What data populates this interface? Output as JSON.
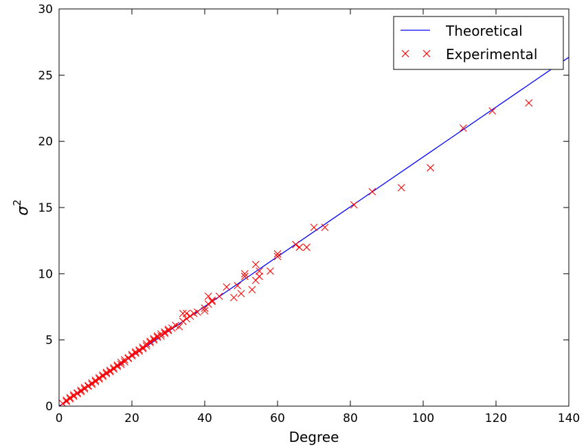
{
  "chart_data": {
    "type": "scatter",
    "title": "",
    "xlabel": "Degree",
    "ylabel_base": "σ",
    "ylabel_exp": "2",
    "xlim": [
      0,
      140
    ],
    "ylim": [
      0,
      30
    ],
    "xticks": [
      0,
      20,
      40,
      60,
      80,
      100,
      120,
      140
    ],
    "yticks": [
      0,
      5,
      10,
      15,
      20,
      25,
      30
    ],
    "grid": false,
    "legend": {
      "placement": "top-right",
      "entries": [
        {
          "name": "Theoretical",
          "marker": "line",
          "color": "#0000ff"
        },
        {
          "name": "Experimental",
          "marker": "x",
          "color": "#ff0000"
        }
      ]
    },
    "series": [
      {
        "name": "Theoretical",
        "kind": "line",
        "color": "#0000ff",
        "x": [
          0,
          140
        ],
        "y": [
          0,
          26.35
        ]
      },
      {
        "name": "Experimental",
        "kind": "scatter",
        "marker": "x",
        "color": "#ff0000",
        "x": [
          1,
          2,
          2,
          3,
          3,
          4,
          4,
          5,
          5,
          6,
          6,
          7,
          7,
          8,
          8,
          9,
          9,
          10,
          10,
          11,
          11,
          12,
          12,
          13,
          13,
          14,
          14,
          15,
          15,
          16,
          16,
          17,
          17,
          18,
          18,
          19,
          19,
          20,
          20,
          21,
          21,
          22,
          22,
          23,
          23,
          24,
          24,
          25,
          25,
          26,
          26,
          27,
          27,
          28,
          28,
          29,
          29,
          30,
          30,
          31,
          32,
          33,
          34,
          34,
          35,
          35,
          36,
          37,
          38,
          40,
          40,
          41,
          41,
          42,
          42,
          44,
          46,
          48,
          49,
          50,
          51,
          51,
          53,
          54,
          54,
          55,
          55,
          58,
          60,
          60,
          65,
          66,
          68,
          70,
          73,
          81,
          86,
          94,
          102,
          111,
          119,
          129
        ],
        "y": [
          0.2,
          0.35,
          0.45,
          0.55,
          0.65,
          0.75,
          0.85,
          0.95,
          1.0,
          1.1,
          1.2,
          1.3,
          1.4,
          1.5,
          1.55,
          1.65,
          1.75,
          1.85,
          1.95,
          2.05,
          2.15,
          2.25,
          2.35,
          2.45,
          2.55,
          2.6,
          2.7,
          2.8,
          2.9,
          3.0,
          3.1,
          3.15,
          3.3,
          3.35,
          3.5,
          3.6,
          3.65,
          3.8,
          3.9,
          4.0,
          4.1,
          4.15,
          4.25,
          4.35,
          4.45,
          4.55,
          4.7,
          4.8,
          4.9,
          5.0,
          5.1,
          5.2,
          5.3,
          5.3,
          5.45,
          5.5,
          5.6,
          5.7,
          5.8,
          5.9,
          6.1,
          6.0,
          6.4,
          7.0,
          6.6,
          7.0,
          6.8,
          7.0,
          7.1,
          7.2,
          7.4,
          7.7,
          8.3,
          7.9,
          8.0,
          8.3,
          9.0,
          8.2,
          9.1,
          8.5,
          9.8,
          10.0,
          8.8,
          9.5,
          10.7,
          9.8,
          10.2,
          10.2,
          11.3,
          11.5,
          12.2,
          12.0,
          12.0,
          13.5,
          13.5,
          15.2,
          16.2,
          16.5,
          18.0,
          21.0,
          22.3,
          22.9
        ]
      }
    ]
  }
}
